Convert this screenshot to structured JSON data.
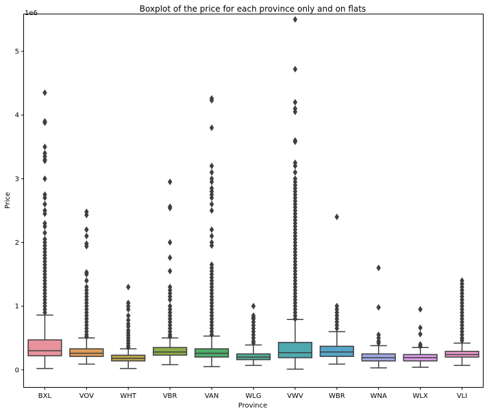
{
  "chart_data": {
    "type": "boxplot",
    "title": "Boxplot of the price for each province only and on flats",
    "xlabel": "Province",
    "ylabel": "Price",
    "y_multiplier_label": "1e6",
    "ylim": [
      -0.27,
      5.58
    ],
    "yticks": [
      0,
      1,
      2,
      3,
      4,
      5
    ],
    "categories": [
      "BXL",
      "VOV",
      "WHT",
      "VBR",
      "VAN",
      "WLG",
      "VWV",
      "WBR",
      "WNA",
      "WLX",
      "VLI"
    ],
    "colors": [
      "#e9919d",
      "#de9c5a",
      "#b8a54f",
      "#8eae4b",
      "#4fae6a",
      "#52ab95",
      "#4fa8af",
      "#57a4c7",
      "#9fa9e3",
      "#d79ee6",
      "#e89ac9"
    ],
    "boxes": [
      {
        "whisker_low": 0.02,
        "q1": 0.22,
        "median": 0.3,
        "q3": 0.47,
        "whisker_high": 0.86,
        "outliers": [
          4.35,
          3.9,
          3.88,
          3.5,
          3.4,
          3.35,
          3.3,
          3.28,
          3.0,
          2.75,
          2.7,
          2.6,
          2.5,
          2.45,
          2.3,
          2.25,
          2.15,
          2.05,
          2.0,
          1.95,
          1.9,
          1.85,
          1.8,
          1.75,
          1.7,
          1.65,
          1.6,
          1.55,
          1.5,
          1.45,
          1.4,
          1.35,
          1.3,
          1.25,
          1.2,
          1.15,
          1.1,
          1.05,
          1.0,
          0.95,
          0.9
        ]
      },
      {
        "whisker_low": 0.09,
        "q1": 0.21,
        "median": 0.26,
        "q3": 0.33,
        "whisker_high": 0.5,
        "outliers": [
          2.48,
          2.43,
          2.2,
          2.1,
          1.98,
          1.94,
          1.53,
          1.5,
          1.4,
          1.3,
          1.25,
          1.2,
          1.15,
          1.1,
          1.05,
          1.0,
          0.95,
          0.9,
          0.85,
          0.8,
          0.75,
          0.7,
          0.65,
          0.6,
          0.55,
          0.52
        ]
      },
      {
        "whisker_low": 0.02,
        "q1": 0.14,
        "median": 0.18,
        "q3": 0.23,
        "whisker_high": 0.33,
        "outliers": [
          1.3,
          1.05,
          1.0,
          0.95,
          0.85,
          0.78,
          0.72,
          0.68,
          0.62,
          0.58,
          0.54,
          0.5,
          0.46,
          0.42,
          0.38,
          0.35
        ]
      },
      {
        "whisker_low": 0.08,
        "q1": 0.23,
        "median": 0.28,
        "q3": 0.35,
        "whisker_high": 0.5,
        "outliers": [
          2.95,
          2.56,
          2.54,
          2.0,
          1.76,
          1.55,
          1.3,
          1.25,
          1.2,
          1.15,
          1.1,
          1.0,
          0.95,
          0.9,
          0.85,
          0.8,
          0.75,
          0.7,
          0.65,
          0.6,
          0.55,
          0.52
        ]
      },
      {
        "whisker_low": 0.05,
        "q1": 0.2,
        "median": 0.26,
        "q3": 0.33,
        "whisker_high": 0.53,
        "outliers": [
          4.26,
          4.23,
          3.8,
          3.2,
          3.1,
          3.0,
          2.95,
          2.85,
          2.8,
          2.75,
          2.7,
          2.6,
          2.5,
          2.2,
          2.1,
          2.0,
          1.95,
          1.65,
          1.6,
          1.55,
          1.5,
          1.45,
          1.4,
          1.35,
          1.3,
          1.25,
          1.2,
          1.15,
          1.1,
          1.05,
          1.0,
          0.95,
          0.9,
          0.85,
          0.8,
          0.75,
          0.7,
          0.65,
          0.6,
          0.55
        ]
      },
      {
        "whisker_low": 0.07,
        "q1": 0.16,
        "median": 0.2,
        "q3": 0.25,
        "whisker_high": 0.39,
        "outliers": [
          1.0,
          0.85,
          0.82,
          0.8,
          0.75,
          0.7,
          0.65,
          0.6,
          0.55,
          0.5,
          0.45,
          0.42
        ]
      },
      {
        "whisker_low": 0.01,
        "q1": 0.19,
        "median": 0.27,
        "q3": 0.43,
        "whisker_high": 0.79,
        "outliers": [
          5.5,
          4.72,
          4.2,
          4.1,
          4.05,
          3.6,
          3.58,
          3.25,
          3.2,
          3.1,
          3.0,
          2.95,
          2.9,
          2.85,
          2.8,
          2.75,
          2.7,
          2.65,
          2.6,
          2.55,
          2.5,
          2.45,
          2.4,
          2.35,
          2.3,
          2.25,
          2.2,
          2.15,
          2.1,
          2.05,
          2.0,
          1.95,
          1.9,
          1.85,
          1.8,
          1.75,
          1.7,
          1.65,
          1.6,
          1.55,
          1.5,
          1.45,
          1.4,
          1.35,
          1.3,
          1.25,
          1.2,
          1.15,
          1.1,
          1.05,
          1.0,
          0.95,
          0.9,
          0.85,
          0.8
        ]
      },
      {
        "whisker_low": 0.09,
        "q1": 0.21,
        "median": 0.28,
        "q3": 0.37,
        "whisker_high": 0.6,
        "outliers": [
          2.4,
          1.0,
          0.95,
          0.9,
          0.85,
          0.8,
          0.75,
          0.7,
          0.65
        ]
      },
      {
        "whisker_low": 0.03,
        "q1": 0.14,
        "median": 0.19,
        "q3": 0.25,
        "whisker_high": 0.38,
        "outliers": [
          1.6,
          0.98,
          0.55,
          0.5,
          0.45,
          0.42
        ]
      },
      {
        "whisker_low": 0.04,
        "q1": 0.14,
        "median": 0.19,
        "q3": 0.24,
        "whisker_high": 0.35,
        "outliers": [
          0.95,
          0.66,
          0.56,
          0.4,
          0.37
        ]
      },
      {
        "whisker_low": 0.07,
        "q1": 0.2,
        "median": 0.24,
        "q3": 0.29,
        "whisker_high": 0.42,
        "outliers": [
          1.4,
          1.35,
          1.3,
          1.25,
          1.2,
          1.15,
          1.1,
          1.05,
          1.0,
          0.95,
          0.9,
          0.85,
          0.8,
          0.75,
          0.7,
          0.65,
          0.6,
          0.55,
          0.5,
          0.46
        ]
      }
    ]
  }
}
